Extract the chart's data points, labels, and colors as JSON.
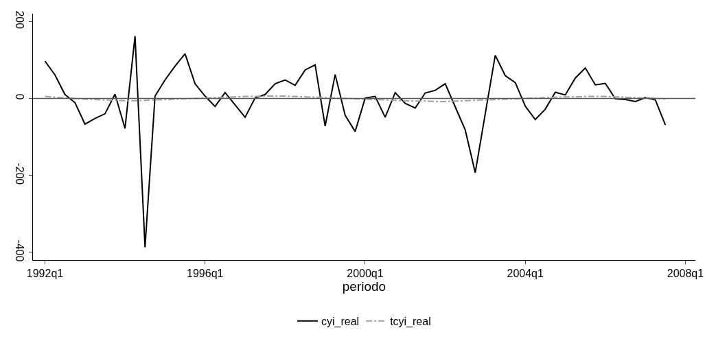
{
  "chart_data": {
    "type": "line",
    "xlabel": "periodo",
    "categories": [
      "1992q1",
      null,
      null,
      null,
      null,
      null,
      null,
      null,
      null,
      null,
      null,
      null,
      null,
      null,
      null,
      null,
      "1996q1",
      null,
      null,
      null,
      null,
      null,
      null,
      null,
      null,
      null,
      null,
      null,
      null,
      null,
      null,
      null,
      "2000q1",
      null,
      null,
      null,
      null,
      null,
      null,
      null,
      null,
      null,
      null,
      null,
      null,
      null,
      null,
      null,
      "2004q1",
      null,
      null,
      null,
      null,
      null,
      null,
      null,
      null,
      null,
      null,
      null,
      null,
      null,
      null,
      null,
      "2008q1"
    ],
    "series": [
      {
        "name": "cyi_real",
        "color": "#000000",
        "line_style": "solid",
        "values": [
          97,
          61,
          10,
          -11,
          -67,
          -52,
          -40,
          11,
          -78,
          162,
          -387,
          6,
          48,
          84,
          116,
          38,
          6,
          -21,
          15,
          -17,
          -49,
          1,
          10,
          38,
          48,
          34,
          74,
          87,
          -72,
          62,
          -44,
          -86,
          1,
          5,
          -49,
          15,
          -13,
          -25,
          14,
          21,
          38,
          -22,
          -82,
          -193,
          -40,
          112,
          59,
          41,
          -20,
          -55,
          -28,
          16,
          9,
          53,
          79,
          35,
          39,
          -1,
          -3,
          -8,
          2,
          -4,
          -69,
          null,
          null
        ]
      },
      {
        "name": "tcyi_real",
        "color": "#a0a0a0",
        "line_style": "dashed",
        "values": [
          5,
          3,
          1,
          0,
          -2,
          -3,
          -4,
          -5,
          -6,
          -6,
          -5,
          -4,
          -3,
          -2,
          -1,
          0,
          1,
          2,
          3,
          4,
          5,
          5,
          6,
          6,
          6,
          5,
          4,
          3,
          2,
          1,
          0,
          -1,
          -2,
          -3,
          -4,
          -5,
          -6,
          -7,
          -7,
          -8,
          -8,
          -7,
          -6,
          -5,
          -4,
          -3,
          -2,
          -1,
          0,
          1,
          2,
          3,
          4,
          4,
          5,
          5,
          5,
          4,
          3,
          2,
          1,
          0,
          -1,
          null,
          null
        ]
      }
    ],
    "ylim": [
      -420,
      220
    ],
    "yticks": [
      -400,
      -200,
      0,
      200
    ],
    "ref_lines": [
      {
        "axis": "y",
        "value": 0,
        "color": "#555555"
      }
    ],
    "grid": false,
    "legend": "bottom",
    "marker": "none"
  }
}
